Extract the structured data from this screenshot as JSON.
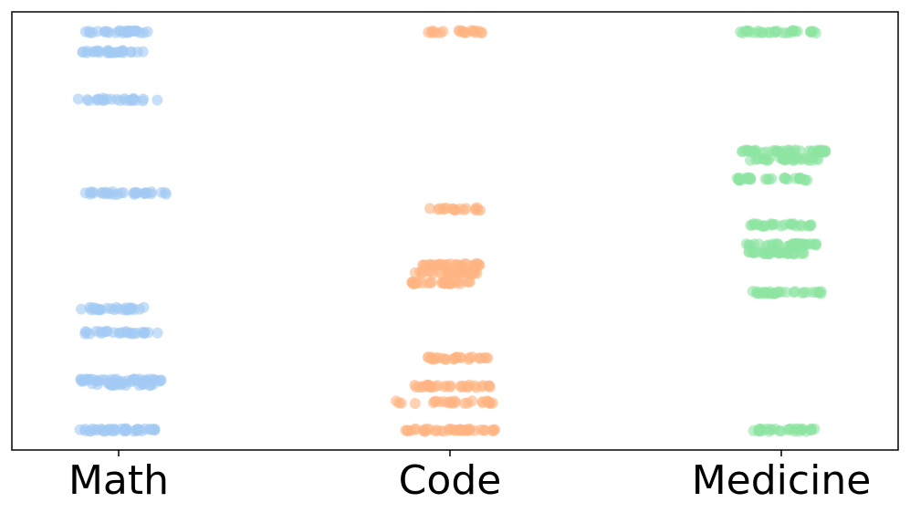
{
  "chart_data": {
    "type": "scatter",
    "title": "",
    "xlabel": "",
    "ylabel": "",
    "grid": false,
    "categories": [
      "Math",
      "Code",
      "Medicine"
    ],
    "colors": {
      "Math": "#a1c9f4",
      "Code": "#ffb482",
      "Medicine": "#8de5a1"
    },
    "marker_alpha": 0.6,
    "ylim": [
      0,
      22
    ],
    "series": [
      {
        "category": "Math",
        "rows": [
          {
            "y": 21,
            "x_spread": [
              -0.2,
              0.15
            ],
            "n": 28
          },
          {
            "y": 20,
            "x_spread": [
              -0.18,
              0.12
            ],
            "n": 26
          },
          {
            "y": 17.6,
            "x_spread": [
              -0.2,
              0.2
            ],
            "n": 24
          },
          {
            "y": 12.9,
            "x_spread": [
              -0.18,
              0.26
            ],
            "n": 30
          },
          {
            "y": 7.1,
            "x_spread": [
              -0.19,
              0.13
            ],
            "n": 26
          },
          {
            "y": 5.9,
            "x_spread": [
              -0.18,
              0.2
            ],
            "n": 26
          },
          {
            "y": 3.5,
            "x_spread": [
              -0.19,
              0.21
            ],
            "n": 40
          },
          {
            "y": 3.3,
            "x_spread": [
              -0.15,
              0.18
            ],
            "n": 20
          },
          {
            "y": 1,
            "x_spread": [
              -0.19,
              0.19
            ],
            "n": 40
          }
        ]
      },
      {
        "category": "Code",
        "rows": [
          {
            "y": 21,
            "x_spread": [
              -0.14,
              0.19
            ],
            "n": 20
          },
          {
            "y": 12.1,
            "x_spread": [
              -0.1,
              0.15
            ],
            "n": 18
          },
          {
            "y": 9.3,
            "x_spread": [
              -0.16,
              0.15
            ],
            "n": 30
          },
          {
            "y": 8.9,
            "x_spread": [
              -0.17,
              0.14
            ],
            "n": 30
          },
          {
            "y": 8.4,
            "x_spread": [
              -0.19,
              0.13
            ],
            "n": 30
          },
          {
            "y": 4.6,
            "x_spread": [
              -0.11,
              0.19
            ],
            "n": 26
          },
          {
            "y": 3.2,
            "x_spread": [
              -0.18,
              0.22
            ],
            "n": 32
          },
          {
            "y": 2.4,
            "x_spread": [
              -0.27,
              0.21
            ],
            "n": 26
          },
          {
            "y": 1,
            "x_spread": [
              -0.22,
              0.25
            ],
            "n": 40
          }
        ]
      },
      {
        "category": "Medicine",
        "rows": [
          {
            "y": 21,
            "x_spread": [
              -0.2,
              0.18
            ],
            "n": 30
          },
          {
            "y": 15,
            "x_spread": [
              -0.2,
              0.23
            ],
            "n": 40
          },
          {
            "y": 14.6,
            "x_spread": [
              -0.18,
              0.2
            ],
            "n": 30
          },
          {
            "y": 13.6,
            "x_spread": [
              -0.22,
              0.15
            ],
            "n": 30
          },
          {
            "y": 11.3,
            "x_spread": [
              -0.18,
              0.15
            ],
            "n": 26
          },
          {
            "y": 10.3,
            "x_spread": [
              -0.2,
              0.17
            ],
            "n": 40
          },
          {
            "y": 9.9,
            "x_spread": [
              -0.16,
              0.11
            ],
            "n": 30
          },
          {
            "y": 7.9,
            "x_spread": [
              -0.18,
              0.2
            ],
            "n": 30
          },
          {
            "y": 1,
            "x_spread": [
              -0.15,
              0.18
            ],
            "n": 30
          }
        ]
      }
    ]
  }
}
